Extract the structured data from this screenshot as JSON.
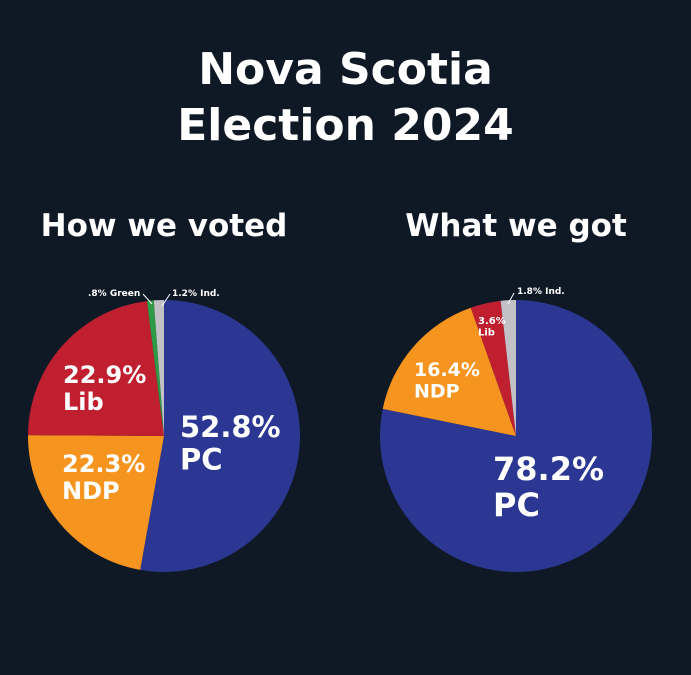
{
  "title_line1": "Nova Scotia",
  "title_line2": "Election 2024",
  "colors": {
    "background": "#0f1926",
    "PC": "#2b3792",
    "NDP": "#f5941f",
    "Lib": "#c01f30",
    "Green": "#2e9a46",
    "Ind": "#c2c2c6"
  },
  "chart_data": [
    {
      "type": "pie",
      "title": "How we voted",
      "slices": [
        {
          "party": "PC",
          "value": 52.8,
          "label_value": "52.8%",
          "label_name": "PC",
          "color": "#2b3792"
        },
        {
          "party": "NDP",
          "value": 22.3,
          "label_value": "22.3%",
          "label_name": "NDP",
          "color": "#f5941f"
        },
        {
          "party": "Lib",
          "value": 22.9,
          "label_value": "22.9%",
          "label_name": "Lib",
          "color": "#c01f30"
        },
        {
          "party": "Green",
          "value": 0.8,
          "label_value": ".8% Green",
          "label_name": "",
          "color": "#2e9a46"
        },
        {
          "party": "Ind",
          "value": 1.2,
          "label_value": "1.2% Ind.",
          "label_name": "",
          "color": "#c2c2c6"
        }
      ]
    },
    {
      "type": "pie",
      "title": "What we got",
      "slices": [
        {
          "party": "PC",
          "value": 78.2,
          "label_value": "78.2%",
          "label_name": "PC",
          "color": "#2b3792"
        },
        {
          "party": "NDP",
          "value": 16.4,
          "label_value": "16.4%",
          "label_name": "NDP",
          "color": "#f5941f"
        },
        {
          "party": "Lib",
          "value": 3.6,
          "label_value": "3.6%",
          "label_name": "Lib",
          "color": "#c01f30"
        },
        {
          "party": "Ind",
          "value": 1.8,
          "label_value": "1.8% Ind.",
          "label_name": "",
          "color": "#c2c2c6"
        }
      ]
    }
  ]
}
